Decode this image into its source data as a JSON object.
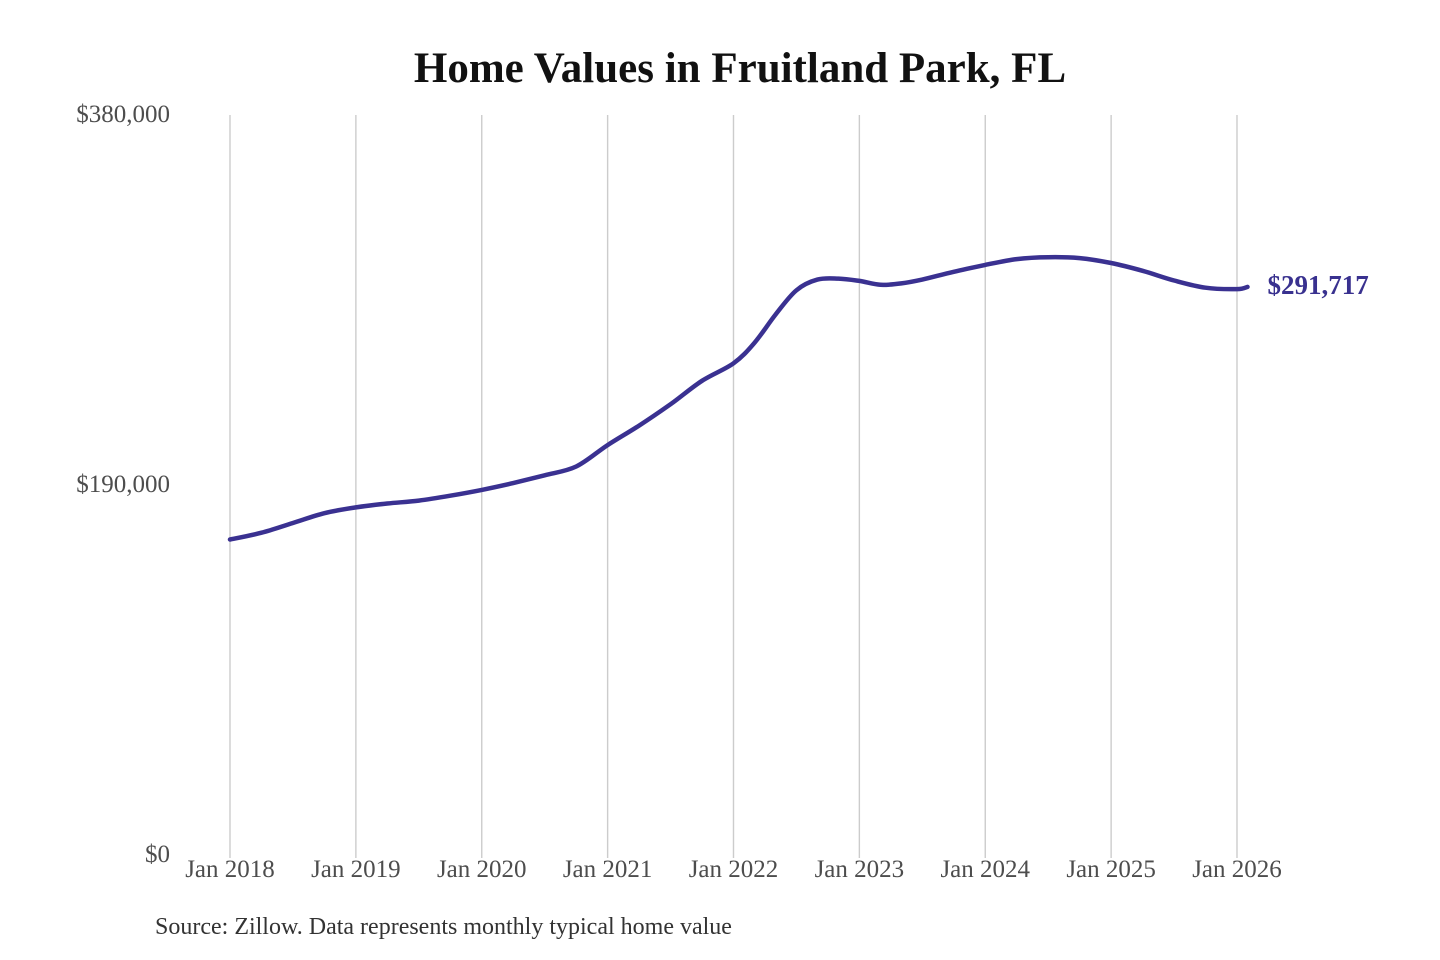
{
  "chart_data": {
    "type": "line",
    "title": "Home Values in Fruitland Park, FL",
    "xlabel": "",
    "ylabel": "",
    "ylim": [
      0,
      380000
    ],
    "grid": "vertical-only",
    "line_color": "#3a3191",
    "gridline_color": "#cccccc",
    "end_value": 291717,
    "end_value_label": "$291,717",
    "source_note": "Source: Zillow. Data represents monthly typical home value",
    "y_ticks": [
      {
        "value": 0,
        "label": "$0"
      },
      {
        "value": 190000,
        "label": "$190,000"
      },
      {
        "value": 380000,
        "label": "$380,000"
      }
    ],
    "x_ticks": [
      {
        "month": "2018-01",
        "label": "Jan 2018"
      },
      {
        "month": "2019-01",
        "label": "Jan 2019"
      },
      {
        "month": "2020-01",
        "label": "Jan 2020"
      },
      {
        "month": "2021-01",
        "label": "Jan 2021"
      },
      {
        "month": "2022-01",
        "label": "Jan 2022"
      },
      {
        "month": "2023-01",
        "label": "Jan 2023"
      },
      {
        "month": "2024-01",
        "label": "Jan 2024"
      },
      {
        "month": "2025-01",
        "label": "Jan 2025"
      },
      {
        "month": "2026-01",
        "label": "Jan 2026"
      }
    ],
    "series": [
      {
        "name": "Monthly typical home value",
        "points": [
          [
            "2018-01",
            162000
          ],
          [
            "2018-04",
            165500
          ],
          [
            "2018-07",
            170500
          ],
          [
            "2018-10",
            175500
          ],
          [
            "2019-01",
            178500
          ],
          [
            "2019-04",
            180500
          ],
          [
            "2019-07",
            182000
          ],
          [
            "2019-10",
            184500
          ],
          [
            "2020-01",
            187500
          ],
          [
            "2020-04",
            191000
          ],
          [
            "2020-07",
            195000
          ],
          [
            "2020-10",
            199500
          ],
          [
            "2021-01",
            210500
          ],
          [
            "2021-04",
            220500
          ],
          [
            "2021-07",
            231500
          ],
          [
            "2021-10",
            243500
          ],
          [
            "2022-01",
            252500
          ],
          [
            "2022-03",
            263000
          ],
          [
            "2022-05",
            277500
          ],
          [
            "2022-07",
            290000
          ],
          [
            "2022-09",
            295500
          ],
          [
            "2022-11",
            296000
          ],
          [
            "2023-01",
            294800
          ],
          [
            "2023-03",
            292800
          ],
          [
            "2023-05",
            293500
          ],
          [
            "2023-07",
            295500
          ],
          [
            "2023-10",
            299500
          ],
          [
            "2024-01",
            303000
          ],
          [
            "2024-04",
            306000
          ],
          [
            "2024-07",
            307000
          ],
          [
            "2024-10",
            306500
          ],
          [
            "2025-01",
            304000
          ],
          [
            "2025-04",
            300000
          ],
          [
            "2025-07",
            295000
          ],
          [
            "2025-10",
            291300
          ],
          [
            "2026-01",
            290600
          ],
          [
            "2026-02",
            291717
          ]
        ]
      }
    ]
  }
}
